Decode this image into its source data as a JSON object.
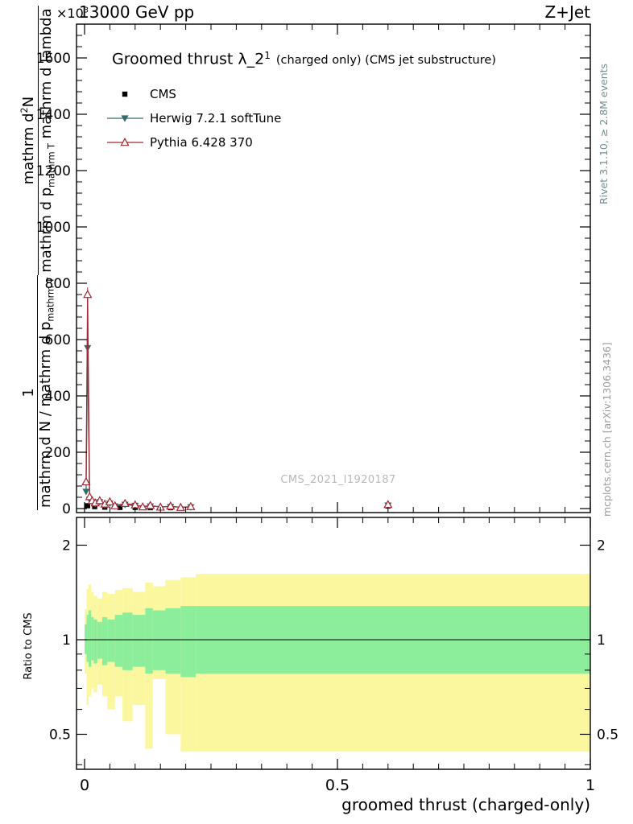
{
  "header": {
    "scale_base": "×10",
    "scale_exp": "3",
    "energy": "13000 GeV pp",
    "process": "Z+Jet"
  },
  "plot_title": {
    "main": "Groomed thrust λ_2",
    "sup": "1",
    "suffix": "(charged only) (CMS jet substructure)"
  },
  "watermark": "CMS_2021_I1920187",
  "right_margin": {
    "rivet": "Rivet 3.1.10, ≥ 2.8M events",
    "mcplots": "mcplots.cern.ch [arXiv:1306.3436]"
  },
  "ylabel": {
    "frac1_num": "1",
    "frac1_den": "mathrm d N / mathrm d p",
    "frac1_den_sub": "mathrm T",
    "frac2_num": "mathrm d",
    "frac2_num_sup": "2",
    "frac2_num_post": "N",
    "frac2_den": "mathrm d p",
    "frac2_den_sub": "mathrm T",
    "frac2_den_post": " mathrm d lambda"
  },
  "chart_data": {
    "type": "line",
    "title": "Groomed thrust λ_2^1 (charged only) (CMS jet substructure)",
    "xlabel": "groomed thrust (charged-only)",
    "ylabel": "1/(dN/dp_T) · d²N/(dp_T dλ)  [×10³]",
    "xlim": [
      -0.016,
      1.0
    ],
    "main": {
      "ylim": [
        -14,
        1720
      ],
      "yticks": [
        0,
        200,
        400,
        600,
        800,
        1000,
        1200,
        1400,
        1600
      ],
      "ytick_scale": "×10³",
      "xticks": [
        0,
        0.5,
        1
      ],
      "series": [
        {
          "name": "CMS",
          "marker": "square",
          "color": "#000000",
          "line": false,
          "points": [
            [
              0.006,
              10,
              3
            ],
            [
              0.02,
              7,
              2
            ],
            [
              0.04,
              5,
              2
            ],
            [
              0.07,
              4,
              1
            ],
            [
              0.1,
              4,
              1
            ],
            [
              0.13,
              3,
              1
            ],
            [
              0.17,
              3,
              1
            ],
            [
              0.6,
              9,
              3
            ]
          ]
        },
        {
          "name": "Herwig 7.2.1 softTune",
          "marker": "triangle-down",
          "color": "#336b6b",
          "line": true,
          "points": [
            [
              0.003,
              60,
              8
            ],
            [
              0.006,
              570,
              20
            ],
            [
              0.01,
              32,
              5
            ],
            [
              0.015,
              22,
              4
            ],
            [
              0.021,
              16,
              3
            ],
            [
              0.03,
              23,
              3
            ],
            [
              0.04,
              12,
              2
            ],
            [
              0.05,
              18,
              3
            ],
            [
              0.06,
              8,
              2
            ],
            [
              0.08,
              14,
              2
            ],
            [
              0.1,
              10,
              2
            ],
            [
              0.13,
              8,
              2
            ],
            [
              0.17,
              6,
              1
            ],
            [
              0.21,
              5,
              1
            ],
            [
              0.6,
              11,
              2
            ]
          ]
        },
        {
          "name": "Pythia 6.428 370",
          "marker": "triangle-up-open",
          "color": "#a62631",
          "line": true,
          "points": [
            [
              0.003,
              95,
              10
            ],
            [
              0.006,
              760,
              25
            ],
            [
              0.01,
              42,
              6
            ],
            [
              0.015,
              28,
              4
            ],
            [
              0.021,
              20,
              3
            ],
            [
              0.03,
              28,
              4
            ],
            [
              0.04,
              16,
              3
            ],
            [
              0.05,
              24,
              3
            ],
            [
              0.06,
              10,
              2
            ],
            [
              0.08,
              18,
              3
            ],
            [
              0.1,
              13,
              2
            ],
            [
              0.115,
              6,
              2
            ],
            [
              0.13,
              11,
              2
            ],
            [
              0.15,
              5,
              1
            ],
            [
              0.17,
              9,
              2
            ],
            [
              0.19,
              4,
              1
            ],
            [
              0.21,
              7,
              1
            ],
            [
              0.6,
              14,
              2
            ]
          ]
        }
      ]
    },
    "ratio": {
      "label": "Ratio to CMS",
      "ylim": [
        0.387,
        2.45
      ],
      "yticks": [
        0.5,
        1,
        2
      ],
      "yticks_minor": [
        0.4,
        0.6,
        0.7,
        0.8,
        0.9
      ],
      "reference": 1,
      "band_colors": {
        "outer": "#fbf79f",
        "inner": "#8cee9b"
      },
      "bands": [
        [
          0.0,
          0.004,
          0.78,
          1.25,
          0.9,
          1.12
        ],
        [
          0.004,
          0.008,
          0.62,
          1.45,
          0.85,
          1.2
        ],
        [
          0.008,
          0.013,
          0.66,
          1.5,
          0.82,
          1.24
        ],
        [
          0.013,
          0.018,
          0.7,
          1.42,
          0.86,
          1.18
        ],
        [
          0.018,
          0.025,
          0.68,
          1.38,
          0.84,
          1.16
        ],
        [
          0.025,
          0.035,
          0.72,
          1.35,
          0.87,
          1.14
        ],
        [
          0.035,
          0.045,
          0.66,
          1.42,
          0.83,
          1.18
        ],
        [
          0.045,
          0.06,
          0.6,
          1.4,
          0.85,
          1.16
        ],
        [
          0.06,
          0.075,
          0.66,
          1.44,
          0.82,
          1.2
        ],
        [
          0.075,
          0.095,
          0.55,
          1.46,
          0.8,
          1.22
        ],
        [
          0.095,
          0.12,
          0.62,
          1.42,
          0.82,
          1.2
        ],
        [
          0.12,
          0.135,
          0.45,
          1.52,
          0.78,
          1.26
        ],
        [
          0.135,
          0.16,
          0.75,
          1.48,
          0.8,
          1.24
        ],
        [
          0.16,
          0.19,
          0.5,
          1.55,
          0.78,
          1.26
        ],
        [
          0.19,
          0.22,
          0.44,
          1.58,
          0.76,
          1.28
        ],
        [
          0.22,
          1.0,
          0.44,
          1.62,
          0.78,
          1.28
        ]
      ]
    }
  }
}
